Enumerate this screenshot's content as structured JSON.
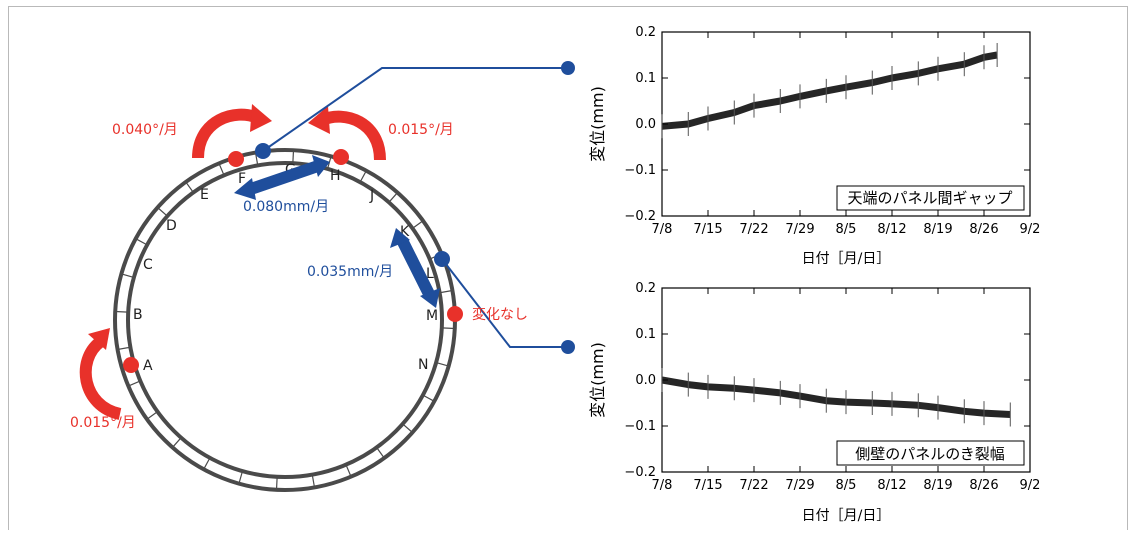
{
  "colors": {
    "red": "#e8312a",
    "blue": "#1f4e9c",
    "ring": "#4a4a4a",
    "text": "#222222"
  },
  "ring": {
    "points": [
      "A",
      "B",
      "C",
      "D",
      "E",
      "F",
      "G",
      "H",
      "J",
      "K",
      "L",
      "M",
      "N"
    ]
  },
  "annotations": {
    "rot_a": "0.015°/月",
    "rot_f": "0.040°/月",
    "rot_h": "0.015°/月",
    "gap_g": "0.080mm/月",
    "gap_kl": "0.035mm/月",
    "no_change": "変化なし"
  },
  "chart_data": [
    {
      "type": "line",
      "title": "天端のパネル間ギャップ",
      "xlabel": "日付［月/日］",
      "ylabel": "変位(mm)",
      "ylim": [
        -0.2,
        0.2
      ],
      "yticks": [
        "0.2",
        "0.1",
        "0.0",
        "−0.1",
        "−0.2"
      ],
      "xticks": [
        "7/8",
        "7/15",
        "7/22",
        "7/29",
        "8/5",
        "8/12",
        "8/19",
        "8/26",
        "9/2"
      ],
      "series": [
        {
          "x": [
            "7/8",
            "7/12",
            "7/15",
            "7/19",
            "7/22",
            "7/26",
            "7/29",
            "8/2",
            "8/5",
            "8/9",
            "8/12",
            "8/16",
            "8/19",
            "8/23",
            "8/26",
            "8/28"
          ],
          "values": [
            -0.005,
            0.0,
            0.012,
            0.025,
            0.04,
            0.05,
            0.06,
            0.072,
            0.08,
            0.09,
            0.1,
            0.11,
            0.12,
            0.13,
            0.145,
            0.15
          ]
        }
      ]
    },
    {
      "type": "line",
      "title": "側壁のパネルのき裂幅",
      "xlabel": "日付［月/日］",
      "ylabel": "変位(mm)",
      "ylim": [
        -0.2,
        0.2
      ],
      "yticks": [
        "0.2",
        "0.1",
        "0.0",
        "−0.1",
        "−0.2"
      ],
      "xticks": [
        "7/8",
        "7/15",
        "7/22",
        "7/29",
        "8/5",
        "8/12",
        "8/19",
        "8/26",
        "9/2"
      ],
      "series": [
        {
          "x": [
            "7/8",
            "7/12",
            "7/15",
            "7/19",
            "7/22",
            "7/26",
            "7/29",
            "8/2",
            "8/5",
            "8/9",
            "8/12",
            "8/16",
            "8/19",
            "8/23",
            "8/26",
            "8/30"
          ],
          "values": [
            0.0,
            -0.01,
            -0.015,
            -0.018,
            -0.022,
            -0.028,
            -0.035,
            -0.045,
            -0.048,
            -0.05,
            -0.052,
            -0.055,
            -0.06,
            -0.068,
            -0.072,
            -0.075
          ]
        }
      ]
    }
  ]
}
